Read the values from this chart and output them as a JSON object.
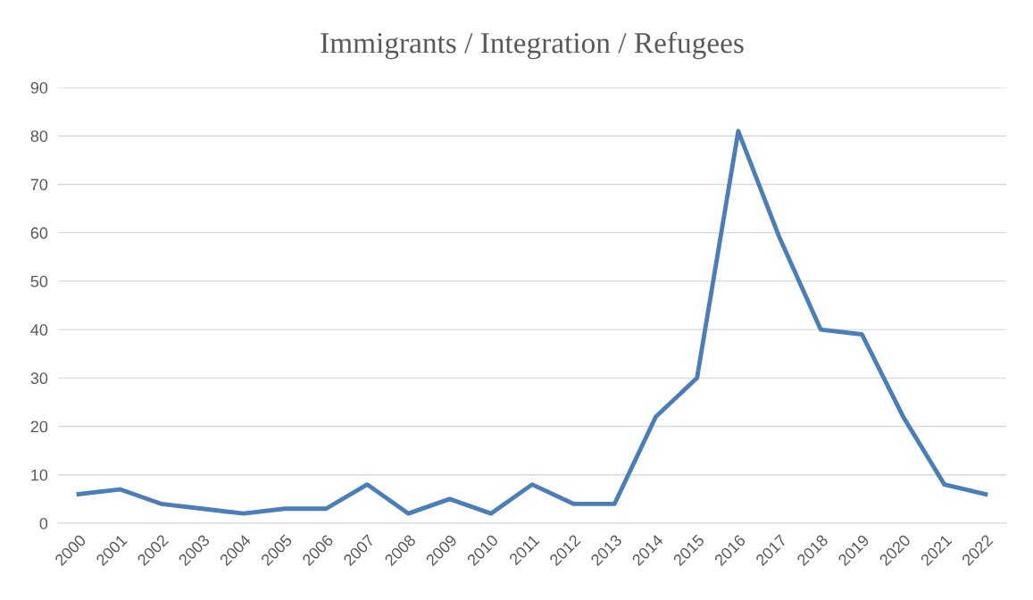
{
  "chart_data": {
    "type": "line",
    "title": "Immigrants / Integration / Refugees",
    "categories": [
      "2000",
      "2001",
      "2002",
      "2003",
      "2004",
      "2005",
      "2006",
      "2007",
      "2008",
      "2009",
      "2010",
      "2011",
      "2012",
      "2013",
      "2014",
      "2015",
      "2016",
      "2017",
      "2018",
      "2019",
      "2020",
      "2021",
      "2022"
    ],
    "series": [
      {
        "color": "#4a7ebb",
        "values": [
          6,
          7,
          4,
          3,
          2,
          3,
          3,
          8,
          2,
          5,
          2,
          8,
          4,
          4,
          22,
          30,
          81,
          59,
          40,
          39,
          22,
          8,
          6
        ]
      }
    ],
    "ylim": [
      0,
      90
    ],
    "yticks": [
      0,
      10,
      20,
      30,
      40,
      50,
      60,
      70,
      80,
      90
    ],
    "grid": "y",
    "marker": "none",
    "line_style": "solid"
  }
}
